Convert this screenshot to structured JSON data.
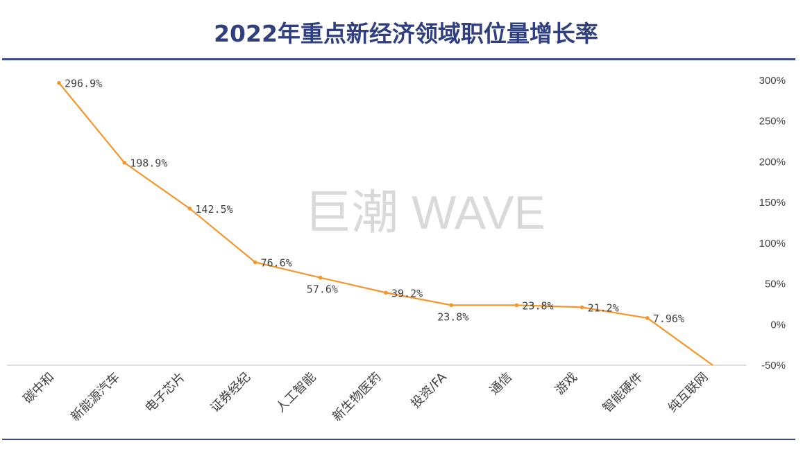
{
  "watermark": "巨潮 WAVE",
  "chart_data": {
    "type": "line",
    "title": "2022年重点新经济领域职位量增长率",
    "xlabel": "",
    "ylabel": "",
    "ylim": [
      -50,
      300
    ],
    "y_ticks": [
      "300%",
      "250%",
      "200%",
      "150%",
      "100%",
      "50%",
      "0%",
      "-50%"
    ],
    "y_tick_values": [
      300,
      250,
      200,
      150,
      100,
      50,
      0,
      -50
    ],
    "y_axis_side": "right",
    "grid": false,
    "categories": [
      "碳中和",
      "新能源汽车",
      "电子芯片",
      "证券经纪",
      "人工智能",
      "新生物医药",
      "投资/FA",
      "通信",
      "游戏",
      "智能硬件",
      "纯互联网"
    ],
    "series": [
      {
        "name": "职位量增长率",
        "color": "#f5962a",
        "values": [
          296.9,
          198.9,
          142.5,
          76.6,
          57.6,
          39.2,
          23.8,
          23.8,
          21.2,
          7.96,
          -50
        ],
        "labels": [
          "296.9%",
          "198.9%",
          "142.5%",
          "76.6%",
          "57.6%",
          "39.2%",
          "23.8%",
          "23.8%",
          "21.2%",
          "7.96%",
          ""
        ]
      }
    ]
  },
  "colors": {
    "title": "#2f3f7f",
    "rule": "#3a4a8c",
    "line": "#f5962a"
  }
}
